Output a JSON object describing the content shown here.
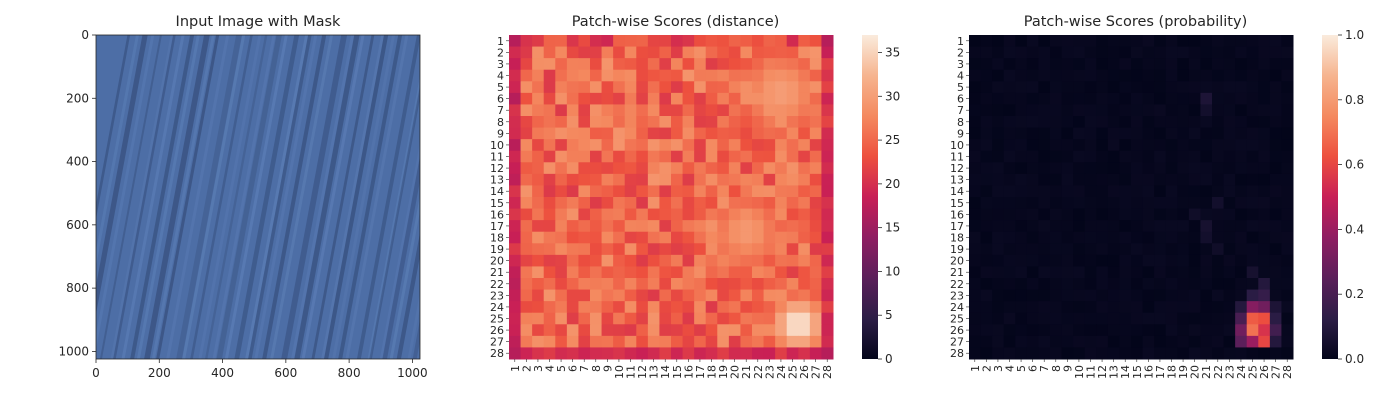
{
  "chart_data": [
    {
      "type": "image",
      "title": "Input Image with Mask",
      "xlim": [
        0,
        1024
      ],
      "ylim": [
        1024,
        0
      ],
      "x_ticks": [
        0,
        200,
        400,
        600,
        800,
        1000
      ],
      "y_ticks": [
        0,
        200,
        400,
        600,
        800,
        1000
      ],
      "image_description": "blue striped texture",
      "image_base_color": "#4d6ea6",
      "stripe_color": "#37507e",
      "highlight_color": "#6083bb"
    },
    {
      "type": "heatmap",
      "title": "Patch-wise Scores (distance)",
      "colormap": "rocket",
      "rows": [
        "1",
        "2",
        "3",
        "4",
        "5",
        "6",
        "7",
        "8",
        "9",
        "10",
        "11",
        "12",
        "13",
        "14",
        "15",
        "16",
        "17",
        "18",
        "19",
        "20",
        "21",
        "22",
        "23",
        "24",
        "25",
        "26",
        "27",
        "28"
      ],
      "cols": [
        "1",
        "2",
        "3",
        "4",
        "5",
        "6",
        "7",
        "8",
        "9",
        "10",
        "11",
        "12",
        "13",
        "14",
        "15",
        "16",
        "17",
        "18",
        "19",
        "20",
        "21",
        "22",
        "23",
        "24",
        "25",
        "26",
        "27",
        "28"
      ],
      "vmin": 0,
      "vmax": 37,
      "colorbar_ticks": [
        0,
        5,
        10,
        15,
        20,
        25,
        30,
        35
      ],
      "border_values": {
        "top_row": 22,
        "bottom_row": 20,
        "left_col": 19,
        "right_col": 20,
        "corners": 17
      },
      "interior_value_range": [
        21,
        29
      ],
      "hotspots": [
        {
          "row": 25.5,
          "col": 25.5,
          "peak": 36.8,
          "spread": 1.6
        },
        {
          "row": 5.5,
          "col": 24.0,
          "peak": 30.0,
          "spread": 2.5
        },
        {
          "row": 17.5,
          "col": 21.0,
          "peak": 29.5,
          "spread": 2.2
        }
      ]
    },
    {
      "type": "heatmap",
      "title": "Patch-wise Scores (probability)",
      "colormap": "rocket",
      "rows": [
        "1",
        "2",
        "3",
        "4",
        "5",
        "6",
        "7",
        "8",
        "9",
        "10",
        "11",
        "12",
        "13",
        "14",
        "15",
        "16",
        "17",
        "18",
        "19",
        "20",
        "21",
        "22",
        "23",
        "24",
        "25",
        "26",
        "27",
        "28"
      ],
      "cols": [
        "1",
        "2",
        "3",
        "4",
        "5",
        "6",
        "7",
        "8",
        "9",
        "10",
        "11",
        "12",
        "13",
        "14",
        "15",
        "16",
        "17",
        "18",
        "19",
        "20",
        "21",
        "22",
        "23",
        "24",
        "25",
        "26",
        "27",
        "28"
      ],
      "vmin": 0,
      "vmax": 1,
      "colorbar_ticks": [
        0.0,
        0.2,
        0.4,
        0.6,
        0.8,
        1.0
      ],
      "colorbar_tick_labels": [
        "0.0",
        "0.2",
        "0.4",
        "0.6",
        "0.8",
        "1.0"
      ],
      "background_value": 0.0,
      "notable_cells": [
        {
          "row": 25,
          "col": 25,
          "value": 0.65
        },
        {
          "row": 25,
          "col": 26,
          "value": 0.62
        },
        {
          "row": 26,
          "col": 25,
          "value": 0.7
        },
        {
          "row": 26,
          "col": 26,
          "value": 0.55
        },
        {
          "row": 27,
          "col": 26,
          "value": 0.6
        },
        {
          "row": 24,
          "col": 25,
          "value": 0.35
        },
        {
          "row": 24,
          "col": 26,
          "value": 0.3
        },
        {
          "row": 27,
          "col": 25,
          "value": 0.4
        },
        {
          "row": 26,
          "col": 24,
          "value": 0.3
        },
        {
          "row": 27,
          "col": 24,
          "value": 0.25
        },
        {
          "row": 25,
          "col": 24,
          "value": 0.2
        },
        {
          "row": 23,
          "col": 25,
          "value": 0.12
        },
        {
          "row": 23,
          "col": 26,
          "value": 0.15
        },
        {
          "row": 22,
          "col": 26,
          "value": 0.1
        },
        {
          "row": 26,
          "col": 27,
          "value": 0.18
        },
        {
          "row": 25,
          "col": 27,
          "value": 0.12
        },
        {
          "row": 27,
          "col": 27,
          "value": 0.1
        },
        {
          "row": 24,
          "col": 27,
          "value": 0.08
        },
        {
          "row": 24,
          "col": 24,
          "value": 0.1
        },
        {
          "row": 6,
          "col": 21,
          "value": 0.08
        },
        {
          "row": 7,
          "col": 21,
          "value": 0.05
        },
        {
          "row": 17,
          "col": 21,
          "value": 0.06
        },
        {
          "row": 18,
          "col": 21,
          "value": 0.05
        },
        {
          "row": 16,
          "col": 20,
          "value": 0.04
        },
        {
          "row": 15,
          "col": 22,
          "value": 0.05
        },
        {
          "row": 19,
          "col": 22,
          "value": 0.04
        },
        {
          "row": 21,
          "col": 25,
          "value": 0.06
        }
      ]
    }
  ]
}
